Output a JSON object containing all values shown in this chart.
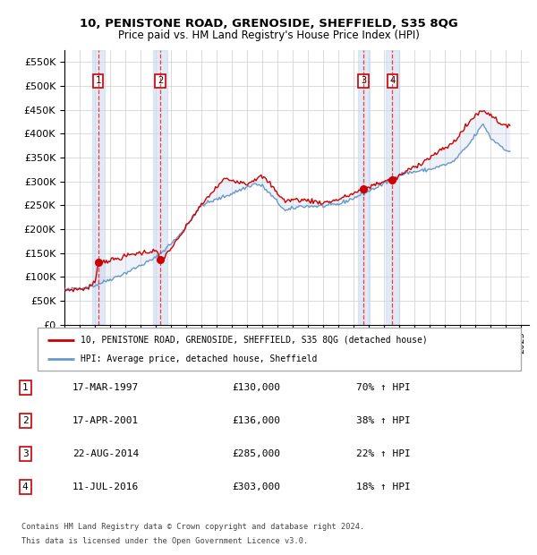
{
  "title": "10, PENISTONE ROAD, GRENOSIDE, SHEFFIELD, S35 8QG",
  "subtitle": "Price paid vs. HM Land Registry's House Price Index (HPI)",
  "ylim": [
    0,
    575000
  ],
  "yticks": [
    0,
    50000,
    100000,
    150000,
    200000,
    250000,
    300000,
    350000,
    400000,
    450000,
    500000,
    550000
  ],
  "xlim_start": 1995.0,
  "xlim_end": 2025.5,
  "legend_line1": "10, PENISTONE ROAD, GRENOSIDE, SHEFFIELD, S35 8QG (detached house)",
  "legend_line2": "HPI: Average price, detached house, Sheffield",
  "footer1": "Contains HM Land Registry data © Crown copyright and database right 2024.",
  "footer2": "This data is licensed under the Open Government Licence v3.0.",
  "sale_color": "#cc0000",
  "hpi_color": "#6699cc",
  "transactions": [
    {
      "num": 1,
      "date": "17-MAR-1997",
      "price": 130000,
      "pct": "70%",
      "year": 1997.21
    },
    {
      "num": 2,
      "date": "17-APR-2001",
      "price": 136000,
      "pct": "38%",
      "year": 2001.29
    },
    {
      "num": 3,
      "date": "22-AUG-2014",
      "price": 285000,
      "pct": "22%",
      "year": 2014.64
    },
    {
      "num": 4,
      "date": "11-JUL-2016",
      "price": 303000,
      "pct": "18%",
      "year": 2016.53
    }
  ],
  "shade_ranges": [
    [
      1996.8,
      1997.65
    ],
    [
      2000.8,
      2001.75
    ],
    [
      2014.3,
      2015.05
    ],
    [
      2016.1,
      2016.95
    ]
  ]
}
